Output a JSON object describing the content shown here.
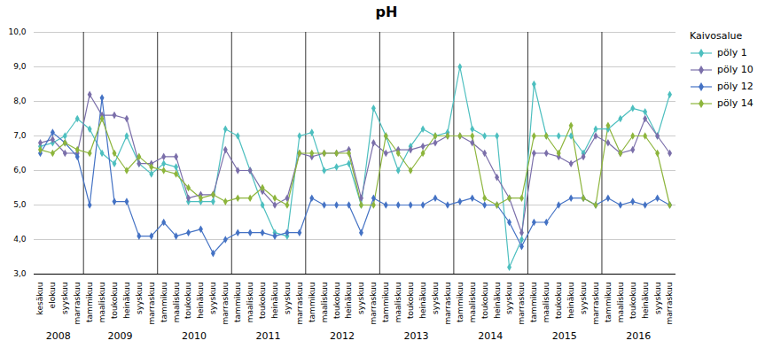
{
  "chart_data": {
    "type": "line",
    "title": "pH",
    "legend_title": "Kaivosalue",
    "legend": "right",
    "grid": true,
    "marker": "diamond",
    "categories": [
      "kesäkuu",
      "elokuu",
      "syyskuu",
      "marraskuu",
      "tammikuu",
      "maaliskuu",
      "toukokuu",
      "heinäkuu",
      "syyskuu",
      "marraskuu",
      "tammikuu",
      "maaliskuu",
      "toukokuu",
      "heinäkuu",
      "syyskuu",
      "marraskuu",
      "tammikuu",
      "maaliskuu",
      "toukokuu",
      "heinäkuu",
      "syyskuu",
      "marraskuu",
      "tammikuu",
      "maaliskuu",
      "toukokuu",
      "heinäkuu",
      "syyskuu",
      "marraskuu",
      "tammikuu",
      "maaliskuu",
      "toukokuu",
      "heinäkuu",
      "syyskuu",
      "marraskuu",
      "tammikuu",
      "maaliskuu",
      "toukokuu",
      "heinäkuu",
      "syyskuu",
      "marraskuu",
      "tammikuu",
      "maaliskuu",
      "toukokuu",
      "heinäkuu",
      "syyskuu",
      "marraskuu",
      "tammikuu",
      "maaliskuu",
      "toukokuu",
      "heinäkuu",
      "syyskuu",
      "marraskuu"
    ],
    "groups": [
      {
        "label": "2008",
        "first": 0
      },
      {
        "label": "2009",
        "first": 4
      },
      {
        "label": "2010",
        "first": 10
      },
      {
        "label": "2011",
        "first": 16
      },
      {
        "label": "2012",
        "first": 22
      },
      {
        "label": "2013",
        "first": 28
      },
      {
        "label": "2014",
        "first": 34
      },
      {
        "label": "2015",
        "first": 40
      },
      {
        "label": "2016",
        "first": 46
      }
    ],
    "ylim": [
      3.0,
      10.0
    ],
    "yticks": [
      {
        "value": 3.0,
        "label": "3,0"
      },
      {
        "value": 4.0,
        "label": "4,0"
      },
      {
        "value": 5.0,
        "label": "5,0"
      },
      {
        "value": 6.0,
        "label": "6,0"
      },
      {
        "value": 7.0,
        "label": "7,0"
      },
      {
        "value": 8.0,
        "label": "8,0"
      },
      {
        "value": 9.0,
        "label": "9,0"
      },
      {
        "value": 10.0,
        "label": "10,0"
      }
    ],
    "series": [
      {
        "name": "pöly 1",
        "color": "#4dbfbf",
        "values": [
          6.7,
          6.8,
          7.0,
          7.5,
          7.2,
          6.5,
          6.2,
          7.0,
          6.2,
          5.9,
          6.2,
          6.1,
          5.1,
          5.1,
          5.1,
          7.2,
          7.0,
          6.0,
          5.0,
          4.2,
          4.1,
          7.0,
          7.1,
          6.0,
          6.1,
          6.2,
          5.0,
          7.8,
          7.0,
          6.0,
          6.7,
          7.2,
          7.0,
          7.1,
          9.0,
          7.2,
          7.0,
          7.0,
          3.2,
          4.0,
          8.5,
          7.0,
          7.0,
          7.0,
          6.5,
          7.2,
          7.2,
          7.5,
          7.8,
          7.7,
          7.0,
          8.2
        ]
      },
      {
        "name": "pöly 10",
        "color": "#7b6faa",
        "values": [
          6.8,
          6.9,
          6.5,
          6.5,
          8.2,
          7.6,
          7.6,
          7.5,
          6.2,
          6.2,
          6.4,
          6.4,
          5.2,
          5.3,
          5.3,
          6.6,
          6.0,
          6.0,
          5.4,
          5.0,
          5.2,
          6.5,
          6.4,
          6.5,
          6.5,
          6.6,
          5.2,
          6.8,
          6.5,
          6.6,
          6.6,
          6.7,
          6.8,
          7.0,
          7.0,
          6.8,
          6.5,
          5.8,
          5.2,
          4.2,
          6.5,
          6.5,
          6.4,
          6.2,
          6.4,
          7.0,
          6.8,
          6.5,
          6.6,
          7.5,
          7.0,
          6.5
        ]
      },
      {
        "name": "pöly 12",
        "color": "#4472c4",
        "values": [
          6.5,
          7.1,
          6.8,
          6.4,
          5.0,
          8.1,
          5.1,
          5.1,
          4.1,
          4.1,
          4.5,
          4.1,
          4.2,
          4.3,
          3.6,
          4.0,
          4.2,
          4.2,
          4.2,
          4.1,
          4.2,
          4.2,
          5.2,
          5.0,
          5.0,
          5.0,
          4.2,
          5.2,
          5.0,
          5.0,
          5.0,
          5.0,
          5.2,
          5.0,
          5.1,
          5.2,
          5.0,
          5.0,
          4.5,
          3.8,
          4.5,
          4.5,
          5.0,
          5.2,
          5.2,
          5.0,
          5.2,
          5.0,
          5.1,
          5.0,
          5.2,
          5.0
        ]
      },
      {
        "name": "pöly 14",
        "color": "#8db53c",
        "values": [
          6.6,
          6.5,
          6.8,
          6.6,
          6.5,
          7.5,
          6.5,
          6.0,
          6.4,
          6.1,
          6.0,
          5.9,
          5.5,
          5.2,
          5.3,
          5.1,
          5.2,
          5.2,
          5.5,
          5.2,
          5.0,
          6.5,
          6.5,
          6.5,
          6.5,
          6.5,
          5.0,
          5.0,
          7.0,
          6.5,
          6.0,
          6.5,
          7.0,
          7.0,
          7.0,
          7.0,
          5.2,
          5.0,
          5.2,
          5.2,
          7.0,
          7.0,
          6.5,
          7.3,
          5.2,
          5.0,
          7.3,
          6.5,
          7.0,
          7.0,
          6.5,
          5.0
        ]
      }
    ]
  }
}
